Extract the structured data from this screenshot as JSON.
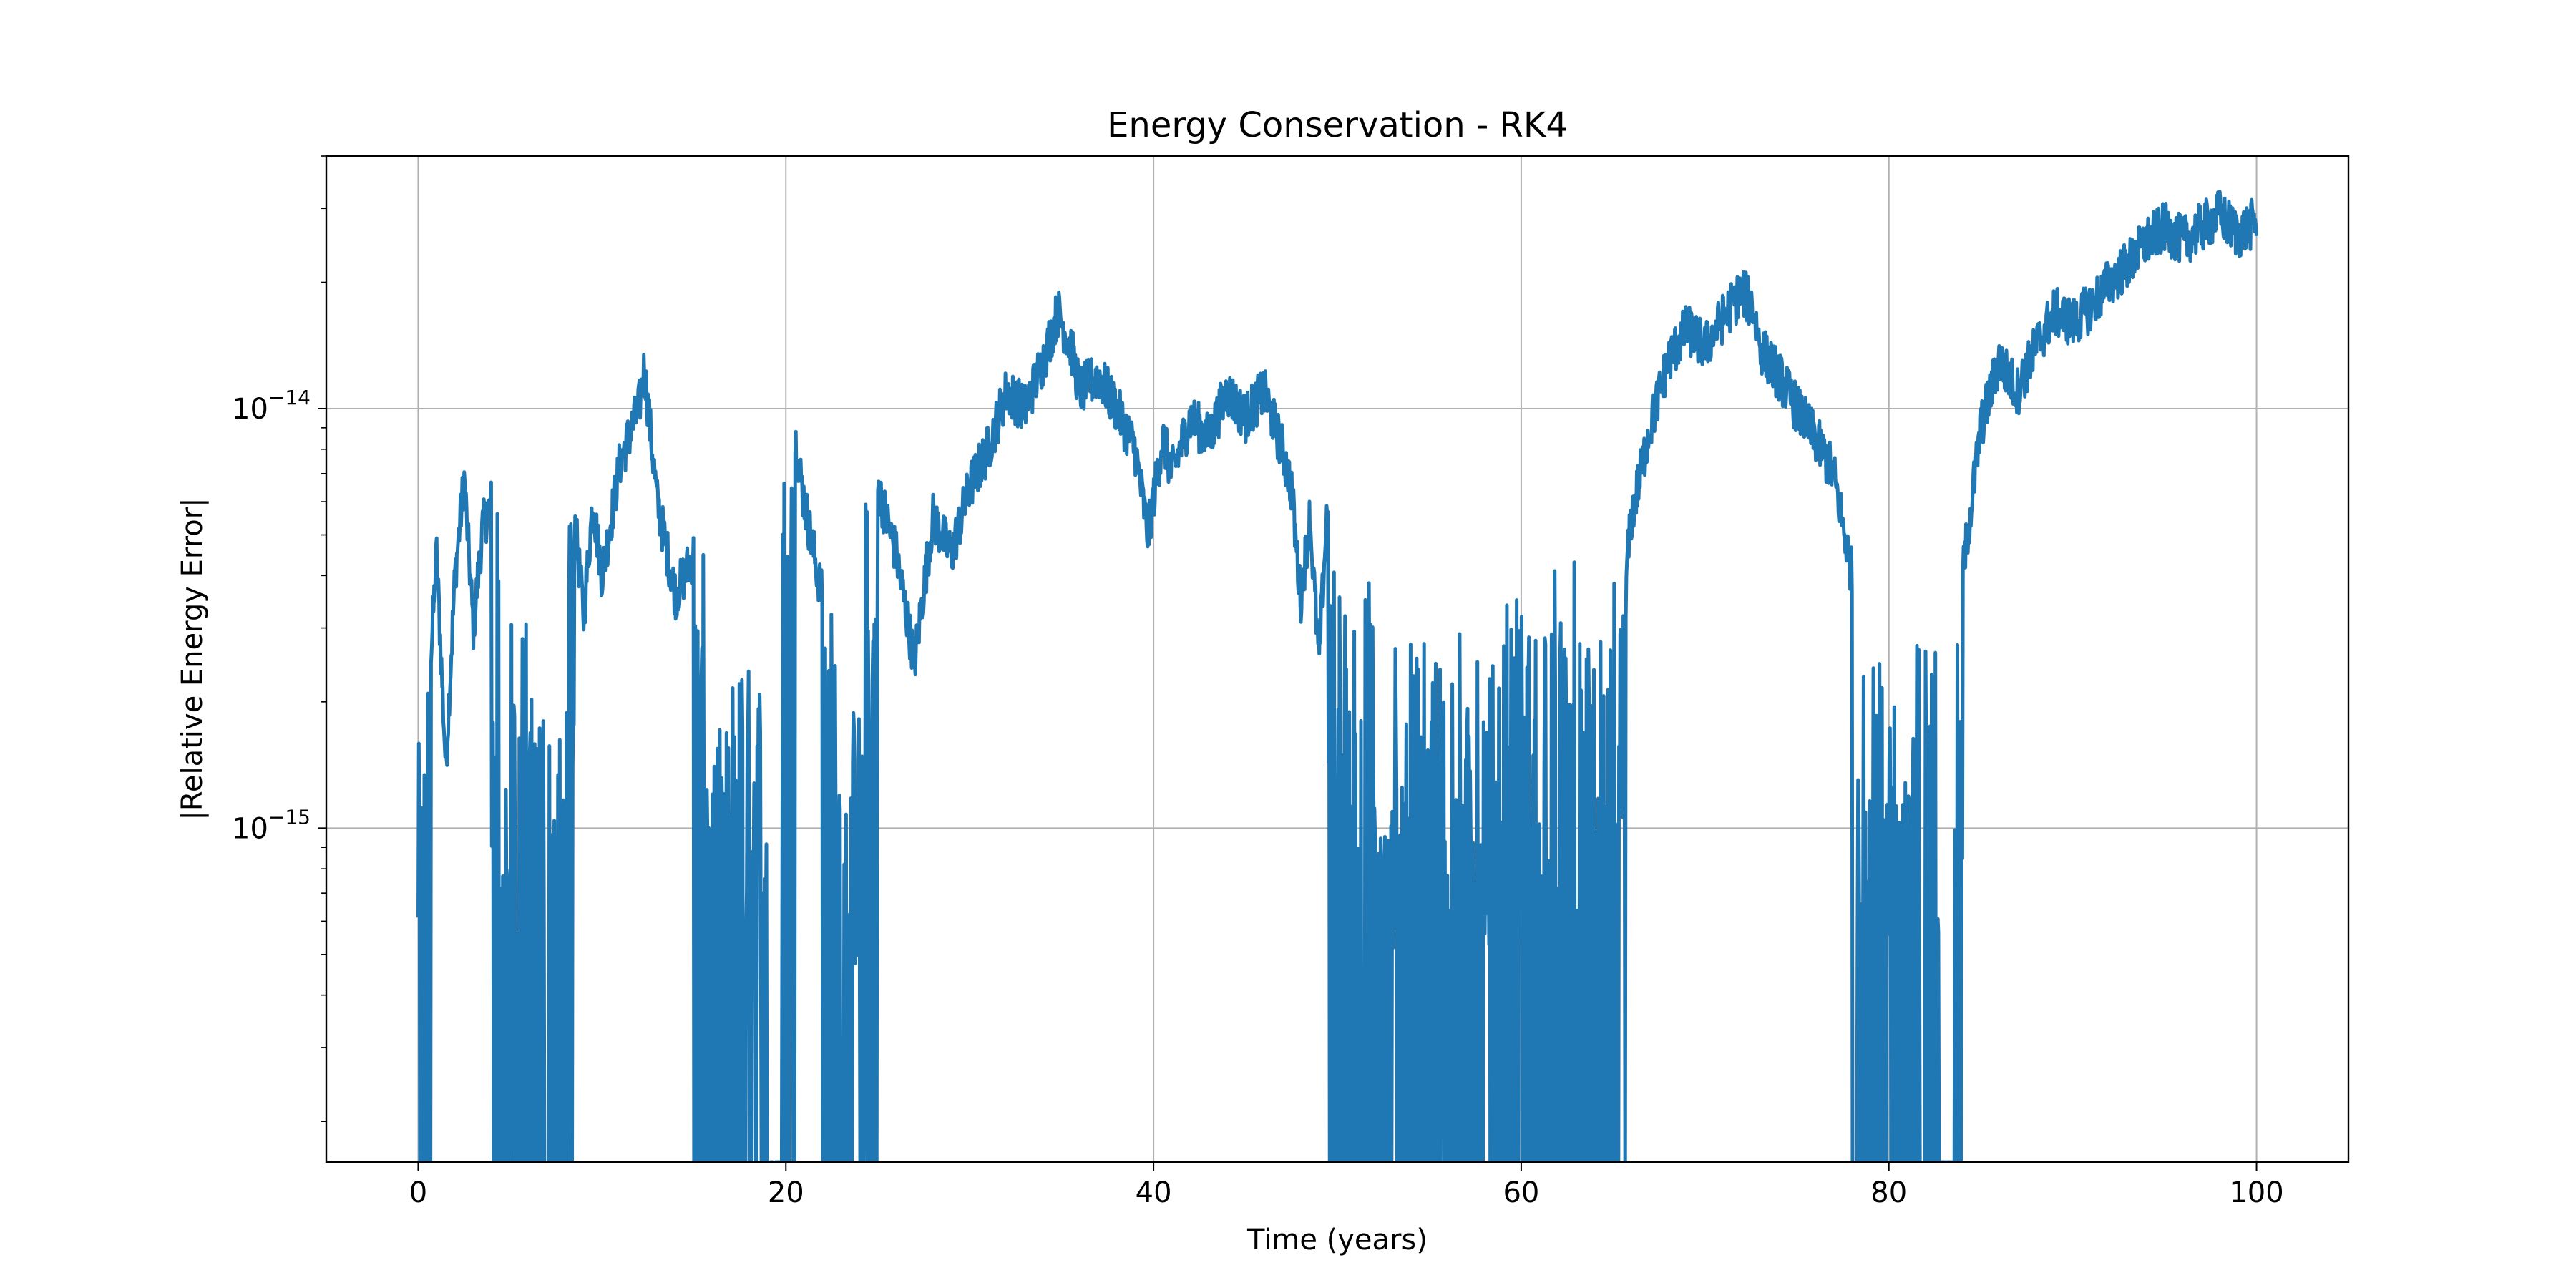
{
  "chart_data": {
    "type": "line",
    "title": "Energy Conservation - RK4",
    "xlabel": "Time (years)",
    "ylabel": "|Relative Energy Error|",
    "yscale": "log",
    "xlim": [
      -5,
      105
    ],
    "ylim": [
      1.6e-16,
      4e-14
    ],
    "grid": true,
    "legend": "none",
    "line_color": "#1f77b4",
    "xticks": [
      {
        "value": 0,
        "label": "0"
      },
      {
        "value": 20,
        "label": "20"
      },
      {
        "value": 40,
        "label": "40"
      },
      {
        "value": 60,
        "label": "60"
      },
      {
        "value": 80,
        "label": "80"
      },
      {
        "value": 100,
        "label": "100"
      }
    ],
    "yticks": [
      {
        "value": 1e-15,
        "base": "10",
        "exp": "−15"
      },
      {
        "value": 1e-14,
        "base": "10",
        "exp": "−14"
      }
    ],
    "series": [
      {
        "values_note": "sampled envelope of the plotted curve",
        "x": [
          0.0,
          0.2,
          0.4,
          0.7,
          1.0,
          1.5,
          2.0,
          2.5,
          3.0,
          3.5,
          4.0,
          4.4,
          4.6,
          5.0,
          5.5,
          6.0,
          6.5,
          7.0,
          7.5,
          8.0,
          8.5,
          9.0,
          9.5,
          10.0,
          11.0,
          12.0,
          12.3,
          13.0,
          14.0,
          15.0,
          15.8,
          16.2,
          17.0,
          18.0,
          19.0,
          19.8,
          20.5,
          21.0,
          22.0,
          22.8,
          23.5,
          24.3,
          25.0,
          26.0,
          27.0,
          28.0,
          29.0,
          30.0,
          31.0,
          32.0,
          33.0,
          34.0,
          34.8,
          35.5,
          36.0,
          37.0,
          38.0,
          39.0,
          39.7,
          40.5,
          41.0,
          42.0,
          43.0,
          44.0,
          45.0,
          46.0,
          47.0,
          47.5,
          48.0,
          48.5,
          49.0,
          49.5,
          50.0,
          51.0,
          52.0,
          52.5,
          53.0,
          54.0,
          55.0,
          56.0,
          57.0,
          58.0,
          59.0,
          60.0,
          61.0,
          62.0,
          63.0,
          64.0,
          65.0,
          65.7,
          66.0,
          67.0,
          68.0,
          69.0,
          70.0,
          71.0,
          72.0,
          72.6,
          73.0,
          74.0,
          75.0,
          76.0,
          77.0,
          78.0,
          78.8,
          79.5,
          80.0,
          80.8,
          81.5,
          82.0,
          82.7,
          83.5,
          84.0,
          85.0,
          86.0,
          87.0,
          88.0,
          89.0,
          90.0,
          91.0,
          92.0,
          93.0,
          94.0,
          95.0,
          96.0,
          97.0,
          98.0,
          99.0,
          100.0
        ],
        "y": [
          1.6e-16,
          1.6e-15,
          1.6e-16,
          2.6e-15,
          4.5e-15,
          1.4e-15,
          4e-15,
          6.8e-15,
          3e-15,
          5.2e-15,
          6e-15,
          1.6e-16,
          1.9e-15,
          1.6e-16,
          3.2e-15,
          1.6e-16,
          2.4e-15,
          1.6e-16,
          1.8e-15,
          1.6e-16,
          5.5e-15,
          3.2e-15,
          6e-15,
          4e-15,
          7.5e-15,
          1e-14,
          1.25e-14,
          6e-15,
          3.6e-15,
          4.5e-15,
          1.6e-16,
          1.8e-15,
          1.6e-16,
          2.5e-15,
          1.6e-16,
          1.6e-16,
          8.5e-15,
          6e-15,
          3.5e-15,
          1.6e-16,
          2e-15,
          1.6e-16,
          6.5e-15,
          4.5e-15,
          2.5e-15,
          5.5e-15,
          4.5e-15,
          6.5e-15,
          8e-15,
          1.1e-14,
          1e-14,
          1.3e-14,
          1.7e-14,
          1.4e-14,
          1.1e-14,
          1.2e-14,
          1e-14,
          8e-15,
          5e-15,
          8.5e-15,
          7e-15,
          9.5e-15,
          8.5e-15,
          1.1e-14,
          9.5e-15,
          1.1e-14,
          8e-15,
          6.5e-15,
          3.5e-15,
          5.5e-15,
          2.5e-15,
          6.5e-15,
          1.6e-16,
          4e-15,
          1.6e-16,
          1.2e-15,
          1.6e-16,
          2.8e-15,
          1.6e-16,
          3e-15,
          1.6e-16,
          2.5e-15,
          1.6e-16,
          3.5e-15,
          1.6e-16,
          4.5e-15,
          1.6e-16,
          2.8e-15,
          1.6e-16,
          4e-15,
          5.5e-15,
          9e-15,
          1.3e-14,
          1.55e-14,
          1.4e-14,
          1.65e-14,
          1.9e-14,
          1.75e-14,
          1.4e-14,
          1.2e-14,
          1e-14,
          8.5e-15,
          7e-15,
          4e-15,
          1.6e-16,
          2.5e-15,
          1.6e-16,
          2.5e-15,
          1.6e-16,
          3e-15,
          1.6e-16,
          1.6e-16,
          4e-15,
          9e-15,
          1.3e-14,
          1.1e-14,
          1.4e-14,
          1.7e-14,
          1.6e-14,
          1.75e-14,
          2e-14,
          2.2e-14,
          2.5e-14,
          2.7e-14,
          2.5e-14,
          2.7e-14,
          2.9e-14,
          2.6e-14,
          2.8e-14
        ]
      }
    ]
  }
}
